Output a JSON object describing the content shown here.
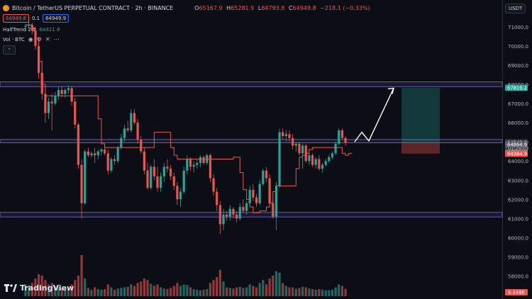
{
  "header": {
    "symbol": "Bitcoin / TetherUS PERPETUAL CONTRACT · 2h · BINANCE",
    "ohlc": [
      {
        "k": "O",
        "v": "65167.9"
      },
      {
        "k": "H",
        "v": "65281.9"
      },
      {
        "k": "L",
        "v": "64793.8"
      },
      {
        "k": "C",
        "v": "64949.8"
      },
      {
        "k": "",
        "v": "−218.1 (−0.33%)"
      }
    ],
    "sell_price": "64949.8",
    "spread": "0.1",
    "buy_price": "64949.9"
  },
  "indicators": [
    {
      "name": "HalfTrend 2 2",
      "value": "64421.9"
    },
    {
      "name": "Vol · BTC",
      "value": ""
    }
  ],
  "currency_button": "USDT",
  "brand": "TradingView",
  "colors": {
    "up": "#26a69a",
    "down": "#ef5350",
    "zone": "#7b6bd6",
    "arrow": "#ffffff"
  },
  "chart_data": {
    "type": "candlestick",
    "ylim": [
      56800,
      72400
    ],
    "yticks": [
      58000,
      59000,
      60000,
      61000,
      62000,
      63000,
      64000,
      65000,
      66000,
      67000,
      68000,
      69000,
      70000,
      71000
    ],
    "price_labels": [
      {
        "value": 67819.2,
        "text": "67819.2",
        "color": "#26a69a"
      },
      {
        "value": 64949.8,
        "text": "64949.8",
        "color": "#363a45",
        "sub": "01:29:03"
      },
      {
        "value": 64864.9,
        "text": "64864.9",
        "color": "#5d606b"
      },
      {
        "value": 64421.9,
        "text": "64421.9",
        "color": "#26a69a"
      },
      {
        "value": 64384.9,
        "text": "64384.9",
        "color": "#ef5350"
      }
    ],
    "volume_label": "6.248K",
    "zones": [
      {
        "from": 67880,
        "to": 68130
      },
      {
        "from": 64950,
        "to": 65120
      },
      {
        "from": 61080,
        "to": 61320
      }
    ],
    "position": {
      "entry": 64949.8,
      "target": 67819.2,
      "stop": 64384.9
    },
    "projection": [
      65000,
      65500,
      65050,
      67800
    ],
    "halftrend": [
      71100,
      71100,
      70900,
      70400,
      69200,
      68000,
      67400,
      67400,
      67400,
      67400,
      67400,
      67400,
      67400,
      67400,
      67400,
      67400,
      67400,
      67400,
      67400,
      67400,
      67400,
      67400,
      66200,
      64900,
      64700,
      64700,
      64700,
      64700,
      64700,
      64700,
      64700,
      64700,
      64700,
      64700,
      64700,
      64700,
      64700,
      64700,
      64700,
      65500,
      65500,
      65500,
      65500,
      65500,
      64700,
      64300,
      64100,
      64100,
      64100,
      64100,
      64100,
      64100,
      64100,
      64100,
      64100,
      64100,
      64100,
      64100,
      64100,
      64100,
      64100,
      64100,
      64100,
      64200,
      64200,
      63400,
      62500,
      62000,
      61600,
      61300,
      61300,
      61400,
      61400,
      61600,
      61800,
      62400,
      62700,
      62700,
      62700,
      62700,
      62700,
      62700,
      63600,
      64200,
      64300,
      64400,
      64600,
      64700,
      64700,
      64700,
      64700,
      64700,
      64700,
      64700,
      64700,
      64700,
      64400,
      64300,
      64400,
      64400
    ],
    "candles": [
      [
        71000,
        71150,
        70800,
        71050,
        40
      ],
      [
        71050,
        71300,
        70900,
        71100,
        38
      ],
      [
        71100,
        71200,
        70600,
        70800,
        45
      ],
      [
        70800,
        71000,
        69800,
        70000,
        60
      ],
      [
        70000,
        70200,
        68300,
        68600,
        75
      ],
      [
        68600,
        68900,
        67200,
        67500,
        70
      ],
      [
        67500,
        67900,
        66000,
        66500,
        55
      ],
      [
        66500,
        67300,
        66200,
        67100,
        40
      ],
      [
        67100,
        67500,
        65600,
        67000,
        45
      ],
      [
        67000,
        67600,
        66900,
        67400,
        35
      ],
      [
        67400,
        67900,
        67200,
        67700,
        30
      ],
      [
        67700,
        67900,
        67300,
        67500,
        28
      ],
      [
        67500,
        67800,
        67300,
        67700,
        25
      ],
      [
        67700,
        67950,
        67500,
        67800,
        24
      ],
      [
        67800,
        67900,
        66900,
        67100,
        40
      ],
      [
        67100,
        67300,
        65700,
        65900,
        55
      ],
      [
        65900,
        66000,
        63600,
        63800,
        70
      ],
      [
        63800,
        64100,
        61000,
        61800,
        140
      ],
      [
        61800,
        64600,
        61700,
        64500,
        60
      ],
      [
        64500,
        64700,
        64200,
        64300,
        28
      ],
      [
        64300,
        64500,
        64200,
        64400,
        22
      ],
      [
        64400,
        64700,
        63900,
        64300,
        30
      ],
      [
        64300,
        64600,
        64100,
        64500,
        24
      ],
      [
        64500,
        64700,
        64300,
        64600,
        22
      ],
      [
        64600,
        64800,
        64300,
        64400,
        24
      ],
      [
        64400,
        64600,
        63300,
        63500,
        40
      ],
      [
        63500,
        64200,
        63400,
        64100,
        30
      ],
      [
        64100,
        64300,
        63800,
        64000,
        22
      ],
      [
        64000,
        64800,
        63900,
        64700,
        26
      ],
      [
        64700,
        65400,
        64600,
        65200,
        28
      ],
      [
        65200,
        65900,
        65000,
        65700,
        30
      ],
      [
        65700,
        66100,
        65500,
        65600,
        32
      ],
      [
        65600,
        66700,
        65500,
        66500,
        40
      ],
      [
        66500,
        66700,
        65900,
        66000,
        35
      ],
      [
        66000,
        66200,
        64900,
        65100,
        45
      ],
      [
        65100,
        65300,
        64400,
        64500,
        50
      ],
      [
        64500,
        64700,
        63300,
        63500,
        60
      ],
      [
        63500,
        63900,
        62500,
        62600,
        55
      ],
      [
        62600,
        63800,
        62500,
        63700,
        42
      ],
      [
        63700,
        64100,
        63000,
        63200,
        35
      ],
      [
        63200,
        63700,
        62400,
        62600,
        40
      ],
      [
        62600,
        63400,
        62400,
        63200,
        30
      ],
      [
        63200,
        63900,
        62900,
        63700,
        26
      ],
      [
        63700,
        64100,
        63400,
        63600,
        24
      ],
      [
        63600,
        63800,
        63000,
        63200,
        28
      ],
      [
        63200,
        63400,
        62500,
        62700,
        35
      ],
      [
        62700,
        62900,
        61700,
        62000,
        45
      ],
      [
        62000,
        62600,
        61600,
        62400,
        35
      ],
      [
        62400,
        63700,
        62300,
        63500,
        40
      ],
      [
        63500,
        64300,
        63300,
        64100,
        38
      ],
      [
        64100,
        64200,
        63500,
        63700,
        30
      ],
      [
        63700,
        64000,
        63400,
        63800,
        24
      ],
      [
        63800,
        64100,
        63600,
        63900,
        22
      ],
      [
        63900,
        64300,
        63700,
        64200,
        20
      ],
      [
        64200,
        64300,
        63800,
        63900,
        22
      ],
      [
        63900,
        64400,
        63800,
        64300,
        24
      ],
      [
        64300,
        64400,
        62900,
        63100,
        45
      ],
      [
        63100,
        63300,
        62200,
        62400,
        55
      ],
      [
        62400,
        62600,
        61400,
        61700,
        65
      ],
      [
        61700,
        61900,
        60200,
        60700,
        90
      ],
      [
        60700,
        61500,
        60400,
        61200,
        50
      ],
      [
        61200,
        61400,
        60900,
        61100,
        30
      ],
      [
        61100,
        61700,
        60900,
        61500,
        28
      ],
      [
        61500,
        61600,
        61000,
        61200,
        26
      ],
      [
        61200,
        61400,
        60800,
        61000,
        30
      ],
      [
        61000,
        61800,
        60900,
        61600,
        32
      ],
      [
        61600,
        62000,
        61300,
        61400,
        28
      ],
      [
        61400,
        61900,
        61200,
        61800,
        30
      ],
      [
        61800,
        62700,
        61700,
        62500,
        40
      ],
      [
        62500,
        62800,
        61900,
        62100,
        35
      ],
      [
        62100,
        62300,
        61600,
        61800,
        30
      ],
      [
        61800,
        63000,
        61700,
        62800,
        45
      ],
      [
        62800,
        63600,
        62700,
        63500,
        55
      ],
      [
        63500,
        63700,
        62900,
        63100,
        40
      ],
      [
        63100,
        63300,
        61600,
        61800,
        60
      ],
      [
        61800,
        62000,
        61000,
        61100,
        70
      ],
      [
        61100,
        62900,
        60400,
        62700,
        85
      ],
      [
        62700,
        65700,
        62600,
        65500,
        80
      ],
      [
        65500,
        65700,
        65100,
        65300,
        45
      ],
      [
        65300,
        65600,
        65000,
        65400,
        35
      ],
      [
        65400,
        65600,
        65000,
        65200,
        30
      ],
      [
        65200,
        65400,
        64600,
        64800,
        30
      ],
      [
        64800,
        65000,
        64500,
        64900,
        25
      ],
      [
        64900,
        65000,
        64300,
        64400,
        28
      ],
      [
        64400,
        64900,
        63600,
        64800,
        32
      ],
      [
        64800,
        64900,
        63900,
        64000,
        30
      ],
      [
        64000,
        64400,
        63800,
        64300,
        26
      ],
      [
        64300,
        64400,
        63700,
        63800,
        24
      ],
      [
        63800,
        64200,
        63600,
        64100,
        22
      ],
      [
        64100,
        64300,
        63500,
        63600,
        24
      ],
      [
        63600,
        63900,
        63400,
        63800,
        22
      ],
      [
        63800,
        64100,
        63700,
        64000,
        20
      ],
      [
        64000,
        64300,
        63900,
        64200,
        20
      ],
      [
        64200,
        64500,
        64100,
        64400,
        22
      ],
      [
        64400,
        65000,
        64300,
        64900,
        30
      ],
      [
        64900,
        65700,
        64800,
        65600,
        40
      ],
      [
        65600,
        65700,
        65100,
        65200,
        35
      ],
      [
        65200,
        65300,
        64800,
        64950,
        25
      ]
    ]
  }
}
